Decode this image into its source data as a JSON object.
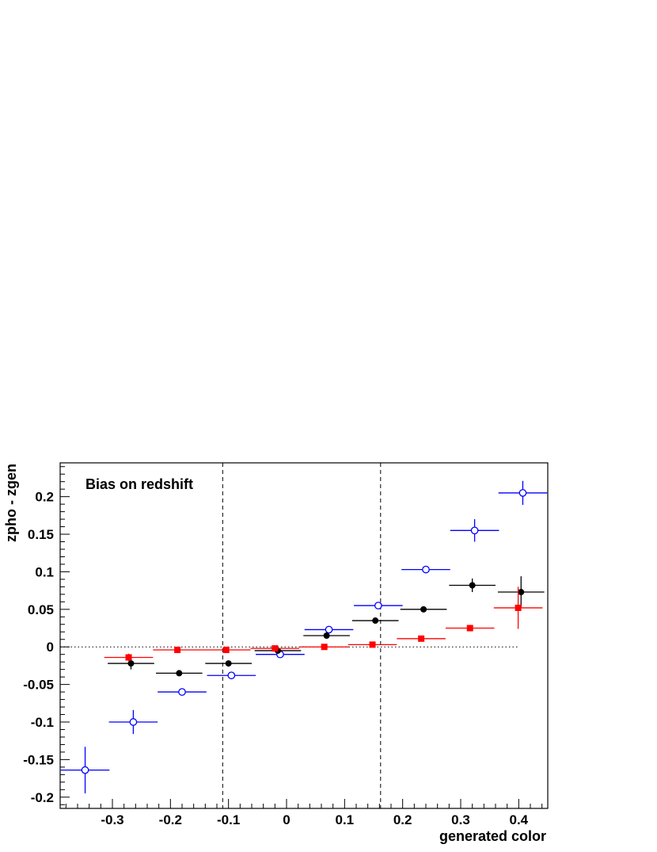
{
  "chart_data": {
    "type": "scatter",
    "title": "Bias on redshift",
    "xlabel": "generated color",
    "ylabel": "zpho - zgen",
    "xlim": [
      -0.39,
      0.45
    ],
    "ylim": [
      -0.215,
      0.245
    ],
    "x_ticks": [
      -0.3,
      -0.2,
      -0.1,
      0,
      0.1,
      0.2,
      0.3,
      0.4
    ],
    "x_tick_labels": [
      "-0.3",
      "-0.2",
      "-0.1",
      "0",
      "0.1",
      "0.2",
      "0.3",
      "0.4"
    ],
    "y_ticks": [
      -0.2,
      -0.15,
      -0.1,
      -0.05,
      0,
      0.05,
      0.1,
      0.15,
      0.2
    ],
    "y_tick_labels": [
      "-0.2",
      "-0.15",
      "-0.1",
      "-0.05",
      "0",
      "0.05",
      "0.1",
      "0.15",
      "0.2"
    ],
    "grid": false,
    "legend": false,
    "reference_lines": {
      "horizontal_zero": {
        "y": 0,
        "x_end": 0.4,
        "style": "dotted"
      },
      "vertical": [
        {
          "x": -0.11,
          "style": "dashed"
        },
        {
          "x": 0.162,
          "style": "dashed"
        }
      ]
    },
    "series": [
      {
        "marker": "open-circle",
        "color": "#0000ff",
        "points": [
          {
            "x": -0.347,
            "y": -0.164,
            "xerr": 0.042,
            "yerr": 0.031
          },
          {
            "x": -0.264,
            "y": -0.1,
            "xerr": 0.042,
            "yerr": 0.016
          },
          {
            "x": -0.18,
            "y": -0.06,
            "xerr": 0.042,
            "yerr": 0.003
          },
          {
            "x": -0.095,
            "y": -0.038,
            "xerr": 0.042,
            "yerr": 0.002
          },
          {
            "x": -0.011,
            "y": -0.01,
            "xerr": 0.042,
            "yerr": 0.002
          },
          {
            "x": 0.073,
            "y": 0.023,
            "xerr": 0.042,
            "yerr": 0.002
          },
          {
            "x": 0.158,
            "y": 0.055,
            "xerr": 0.042,
            "yerr": 0.003
          },
          {
            "x": 0.24,
            "y": 0.103,
            "xerr": 0.042,
            "yerr": 0.004
          },
          {
            "x": 0.324,
            "y": 0.155,
            "xerr": 0.042,
            "yerr": 0.015
          },
          {
            "x": 0.407,
            "y": 0.205,
            "xerr": 0.042,
            "yerr": 0.016
          }
        ]
      },
      {
        "marker": "filled-circle",
        "color": "#000000",
        "points": [
          {
            "x": -0.268,
            "y": -0.022,
            "xerr": 0.04,
            "yerr": 0.008
          },
          {
            "x": -0.185,
            "y": -0.035,
            "xerr": 0.04,
            "yerr": 0.003
          },
          {
            "x": -0.1,
            "y": -0.022,
            "xerr": 0.04,
            "yerr": 0.002
          },
          {
            "x": -0.015,
            "y": -0.005,
            "xerr": 0.04,
            "yerr": 0.002
          },
          {
            "x": 0.069,
            "y": 0.015,
            "xerr": 0.04,
            "yerr": 0.002
          },
          {
            "x": 0.153,
            "y": 0.035,
            "xerr": 0.04,
            "yerr": 0.002
          },
          {
            "x": 0.236,
            "y": 0.05,
            "xerr": 0.04,
            "yerr": 0.003
          },
          {
            "x": 0.32,
            "y": 0.082,
            "xerr": 0.04,
            "yerr": 0.009
          },
          {
            "x": 0.404,
            "y": 0.073,
            "xerr": 0.04,
            "yerr": 0.021
          }
        ]
      },
      {
        "marker": "filled-square",
        "color": "#ff0000",
        "points": [
          {
            "x": -0.272,
            "y": -0.014,
            "xerr": 0.042,
            "yerr": 0.005
          },
          {
            "x": -0.188,
            "y": -0.004,
            "xerr": 0.042,
            "yerr": 0.002
          },
          {
            "x": -0.104,
            "y": -0.004,
            "xerr": 0.042,
            "yerr": 0.002
          },
          {
            "x": -0.02,
            "y": -0.002,
            "xerr": 0.042,
            "yerr": 0.002
          },
          {
            "x": 0.065,
            "y": 0.0,
            "xerr": 0.042,
            "yerr": 0.002
          },
          {
            "x": 0.148,
            "y": 0.003,
            "xerr": 0.042,
            "yerr": 0.002
          },
          {
            "x": 0.232,
            "y": 0.011,
            "xerr": 0.042,
            "yerr": 0.002
          },
          {
            "x": 0.316,
            "y": 0.025,
            "xerr": 0.042,
            "yerr": 0.004
          },
          {
            "x": 0.399,
            "y": 0.052,
            "xerr": 0.042,
            "yerr": 0.028
          }
        ]
      }
    ]
  }
}
